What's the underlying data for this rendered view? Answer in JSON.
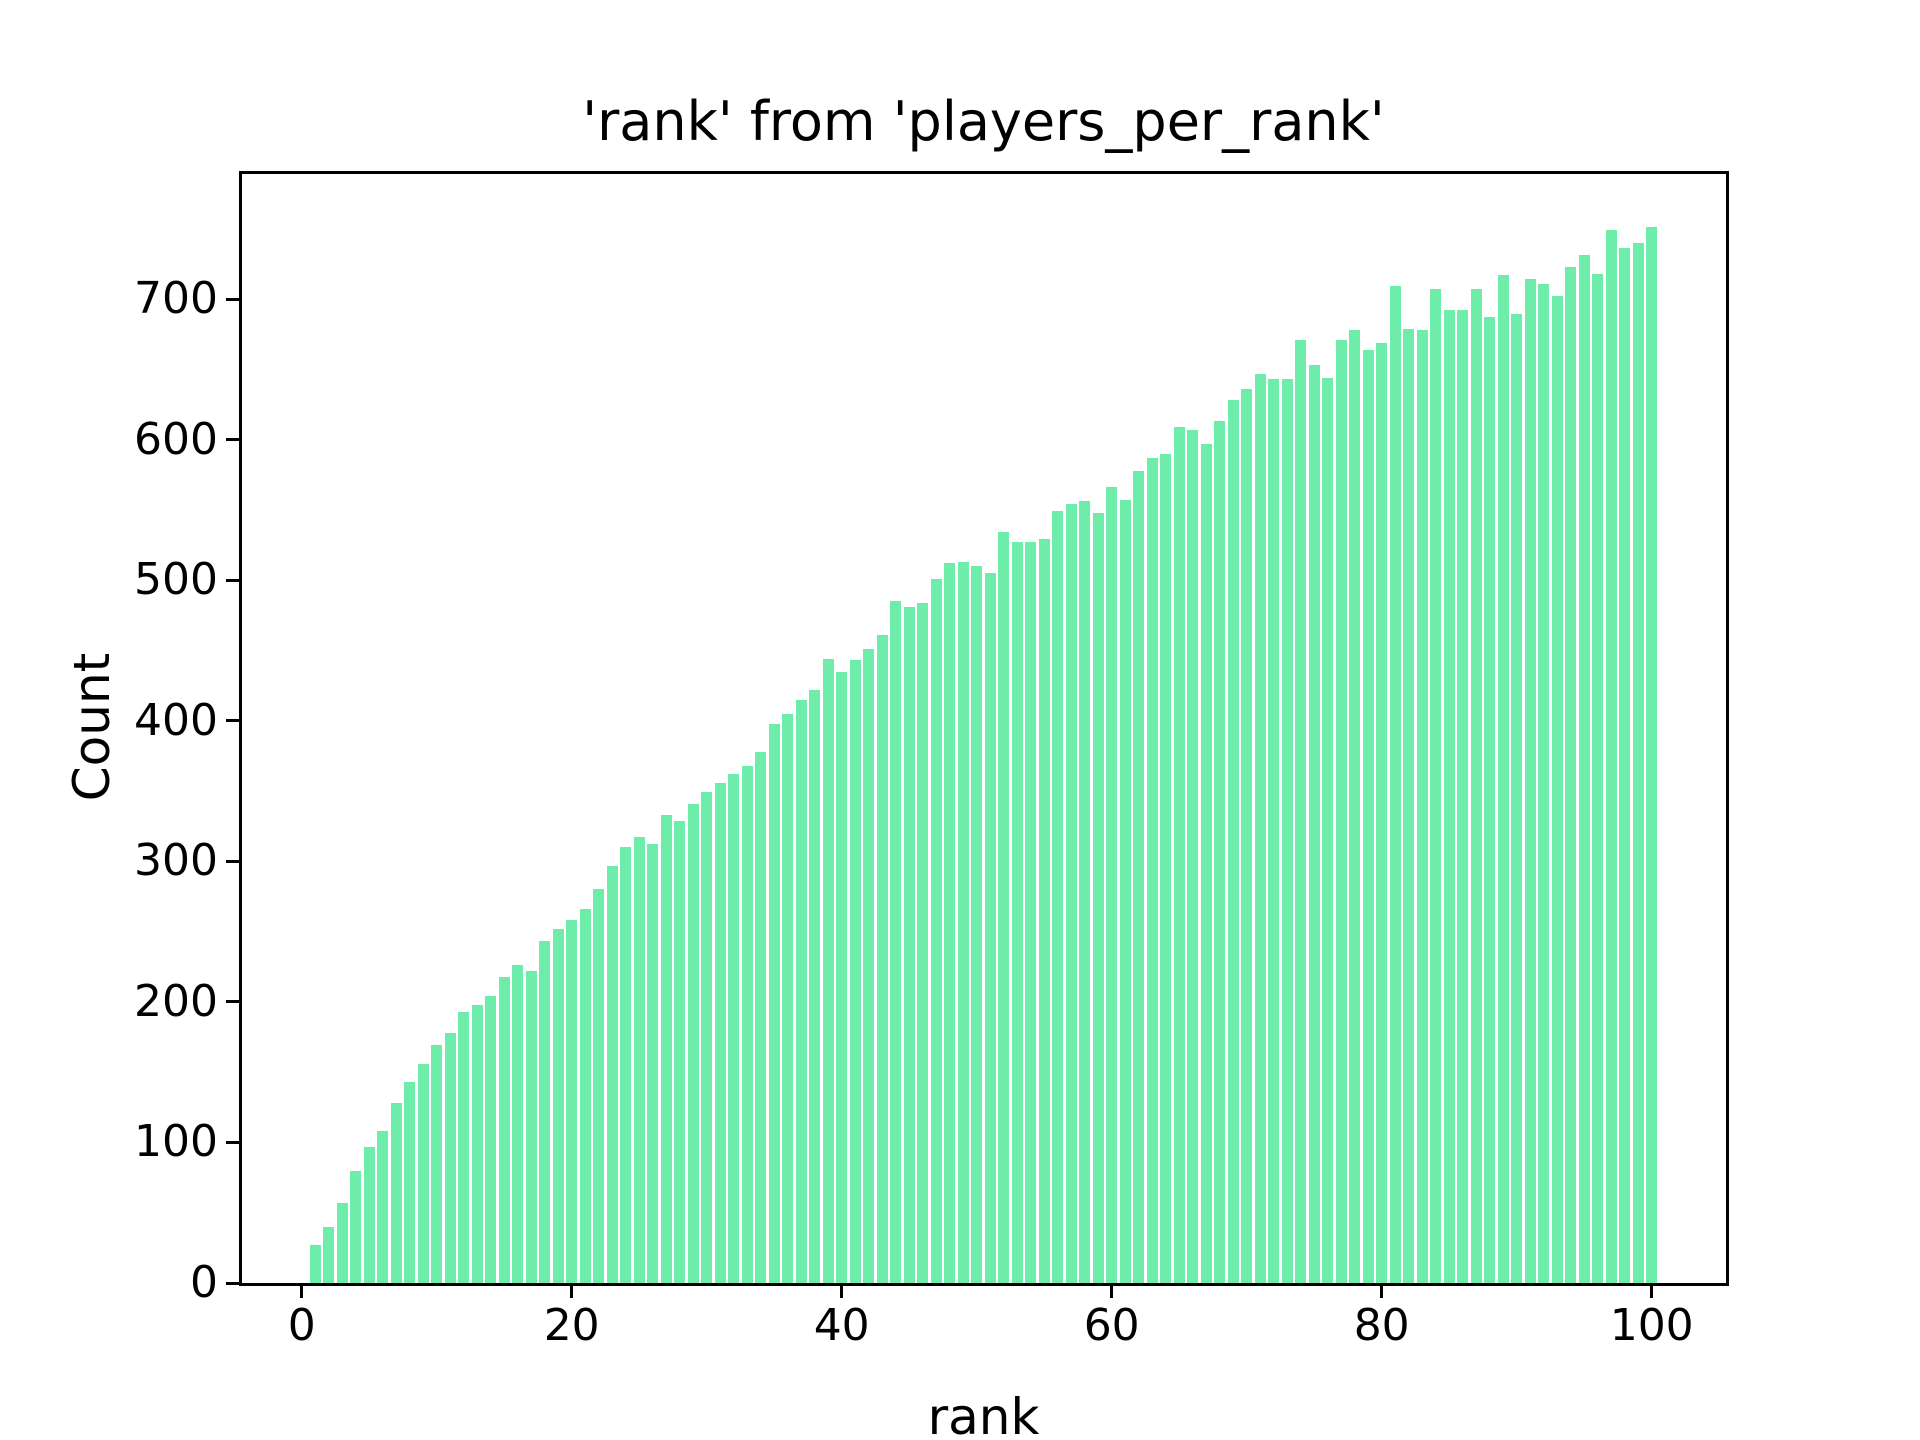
{
  "chart_data": {
    "type": "bar",
    "title": "'rank' from 'players_per_rank'",
    "xlabel": "rank",
    "ylabel": "Count",
    "x": [
      1,
      2,
      3,
      4,
      5,
      6,
      7,
      8,
      9,
      10,
      11,
      12,
      13,
      14,
      15,
      16,
      17,
      18,
      19,
      20,
      21,
      22,
      23,
      24,
      25,
      26,
      27,
      28,
      29,
      30,
      31,
      32,
      33,
      34,
      35,
      36,
      37,
      38,
      39,
      40,
      41,
      42,
      43,
      44,
      45,
      46,
      47,
      48,
      49,
      50,
      51,
      52,
      53,
      54,
      55,
      56,
      57,
      58,
      59,
      60,
      61,
      62,
      63,
      64,
      65,
      66,
      67,
      68,
      69,
      70,
      71,
      72,
      73,
      74,
      75,
      76,
      77,
      78,
      79,
      80,
      81,
      82,
      83,
      84,
      85,
      86,
      87,
      88,
      89,
      90,
      91,
      92,
      93,
      94,
      95,
      96,
      97,
      98,
      99,
      100
    ],
    "values": [
      27,
      40,
      57,
      80,
      97,
      108,
      128,
      143,
      156,
      169,
      178,
      193,
      198,
      204,
      218,
      226,
      222,
      243,
      252,
      258,
      266,
      280,
      297,
      310,
      317,
      312,
      333,
      329,
      341,
      349,
      356,
      362,
      368,
      378,
      398,
      405,
      415,
      422,
      444,
      435,
      443,
      451,
      461,
      485,
      481,
      484,
      501,
      512,
      513,
      510,
      505,
      534,
      527,
      527,
      529,
      549,
      554,
      556,
      548,
      566,
      557,
      578,
      587,
      590,
      609,
      607,
      597,
      613,
      628,
      636,
      647,
      643,
      643,
      671,
      653,
      644,
      671,
      678,
      664,
      669,
      709,
      679,
      678,
      707,
      692,
      692,
      707,
      687,
      717,
      689,
      714,
      711,
      702,
      723,
      731,
      718,
      749,
      736,
      740,
      751
    ],
    "xticks": [
      0,
      20,
      40,
      60,
      80,
      100
    ],
    "yticks": [
      0,
      100,
      200,
      300,
      400,
      500,
      600,
      700
    ],
    "xlim": [
      -4.6,
      105.6
    ],
    "ylim": [
      0,
      790
    ],
    "grid": false,
    "legend_position": "none",
    "bar_color": "#6eecaa",
    "bar_width_fraction": 0.8,
    "text_color": "#000000",
    "spine_color": "#000000"
  }
}
